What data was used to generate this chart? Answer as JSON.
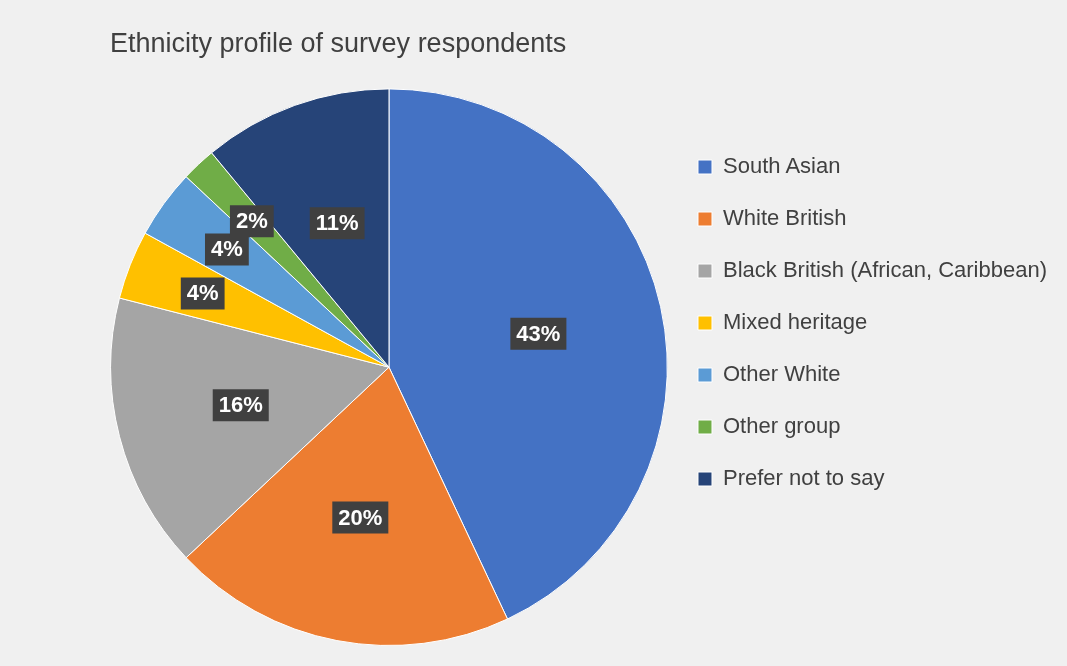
{
  "chart_data": {
    "type": "pie",
    "title": "Ethnicity profile of survey respondents",
    "categories": [
      "South Asian",
      "White British",
      "Black British (African, Caribbean)",
      "Mixed heritage",
      "Other White",
      "Other group",
      "Prefer not to say"
    ],
    "values": [
      43,
      20,
      16,
      4,
      4,
      2,
      11
    ],
    "colors": [
      "#4472c4",
      "#ed7d31",
      "#a5a5a5",
      "#ffc000",
      "#5b9bd5",
      "#70ad47",
      "#264478"
    ],
    "value_labels": [
      "43%",
      "20%",
      "16%",
      "4%",
      "4%",
      "2%",
      "11%"
    ],
    "legend": "right"
  }
}
